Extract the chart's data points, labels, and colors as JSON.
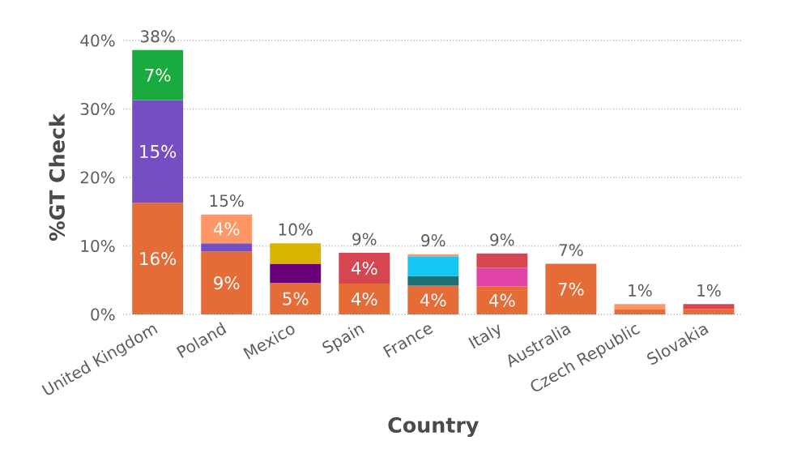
{
  "chart_data": {
    "type": "bar",
    "stacked": true,
    "xlabel": "Country",
    "ylabel": "%GT Check",
    "categories": [
      "United Kingdom",
      "Poland",
      "Mexico",
      "Spain",
      "France",
      "Italy",
      "Australia",
      "Czech Republic",
      "Slovakia"
    ],
    "series": [
      {
        "color": "#e66c37",
        "values": [
          16.3,
          9.2,
          4.6,
          4.5,
          4.2,
          4.1,
          7.4,
          0.7,
          0.8
        ],
        "value_labels": [
          "16%",
          "9%",
          "5%",
          "4%",
          "4%",
          "4%",
          "7%",
          null,
          null
        ]
      },
      {
        "color": "#744ec2",
        "values": [
          15.0,
          1.2,
          null,
          null,
          null,
          null,
          null,
          null,
          null
        ],
        "value_labels": [
          "15%",
          null,
          null,
          null,
          null,
          null,
          null,
          null,
          null
        ]
      },
      {
        "color": "#1aab40",
        "values": [
          7.3,
          null,
          null,
          null,
          null,
          null,
          null,
          null,
          null
        ],
        "value_labels": [
          "7%",
          null,
          null,
          null,
          null,
          null,
          null,
          null,
          null
        ]
      },
      {
        "color": "#fe9666",
        "values": [
          null,
          4.2,
          null,
          null,
          null,
          null,
          null,
          0.8,
          null
        ],
        "value_labels": [
          null,
          "4%",
          null,
          null,
          null,
          null,
          null,
          null,
          null
        ]
      },
      {
        "color": "#6b007b",
        "values": [
          null,
          null,
          2.8,
          null,
          null,
          null,
          null,
          null,
          null
        ]
      },
      {
        "color": "#d9b300",
        "values": [
          null,
          null,
          3.0,
          null,
          null,
          null,
          null,
          null,
          null
        ]
      },
      {
        "color": "#197278",
        "values": [
          null,
          null,
          null,
          null,
          1.4,
          null,
          null,
          null,
          null
        ]
      },
      {
        "color": "#15c6f4",
        "values": [
          null,
          null,
          null,
          null,
          2.9,
          null,
          null,
          null,
          null
        ]
      },
      {
        "color": "#fe9666",
        "values": [
          null,
          null,
          null,
          null,
          0.3,
          null,
          null,
          null,
          null
        ]
      },
      {
        "color": "#e044a7",
        "values": [
          null,
          null,
          null,
          null,
          null,
          2.7,
          null,
          null,
          null
        ]
      },
      {
        "color": "#d64550",
        "values": [
          null,
          null,
          null,
          4.5,
          null,
          2.1,
          null,
          null,
          0.7
        ],
        "value_labels": [
          null,
          null,
          null,
          "4%",
          null,
          null,
          null,
          null,
          null
        ]
      }
    ],
    "totals": [
      "38%",
      "15%",
      "10%",
      "9%",
      "9%",
      "9%",
      "7%",
      "1%",
      "1%"
    ],
    "ylim": [
      0,
      40
    ],
    "yticks": [
      {
        "value": 0,
        "label": "0%"
      },
      {
        "value": 10,
        "label": "10%"
      },
      {
        "value": 20,
        "label": "20%"
      },
      {
        "value": 30,
        "label": "30%"
      },
      {
        "value": 40,
        "label": "40%"
      }
    ],
    "grid": "y"
  }
}
